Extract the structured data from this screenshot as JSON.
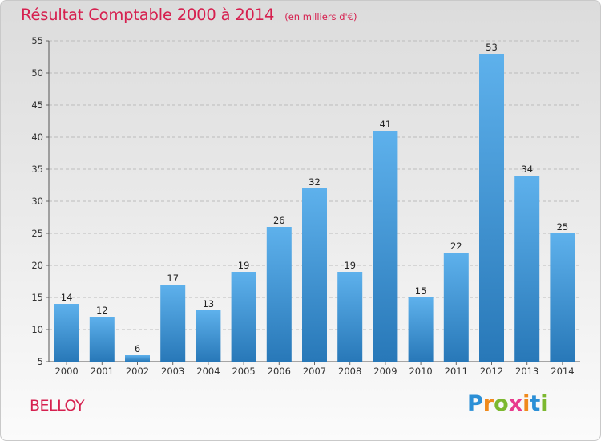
{
  "chart_data": {
    "type": "bar",
    "title": "Résultat Comptable 2000 à 2014",
    "subtitle": "(en milliers d'€)",
    "categories": [
      "2000",
      "2001",
      "2002",
      "2003",
      "2004",
      "2005",
      "2006",
      "2007",
      "2008",
      "2009",
      "2010",
      "2011",
      "2012",
      "2013",
      "2014"
    ],
    "values": [
      14,
      12,
      6,
      17,
      13,
      19,
      26,
      32,
      19,
      41,
      15,
      22,
      53,
      34,
      25
    ],
    "ylim": [
      5,
      55
    ],
    "yticks": [
      5,
      10,
      15,
      20,
      25,
      30,
      35,
      40,
      45,
      50,
      55
    ],
    "xlabel": "",
    "ylabel": "",
    "grid": true
  },
  "commune": "BELLOY",
  "logo": {
    "letters": [
      "P",
      "r",
      "o",
      "x",
      "i",
      "t",
      "i"
    ],
    "colors": [
      "#2b8fd6",
      "#f08a1c",
      "#7cb82f",
      "#e83a8c",
      "#f08a1c",
      "#2b8fd6",
      "#7cb82f"
    ]
  },
  "colors": {
    "accent": "#d6204f",
    "bar_top": "#5aaeea",
    "bar_bottom": "#2a7fbf",
    "grid": "#bdbdbd",
    "text": "#222222"
  }
}
